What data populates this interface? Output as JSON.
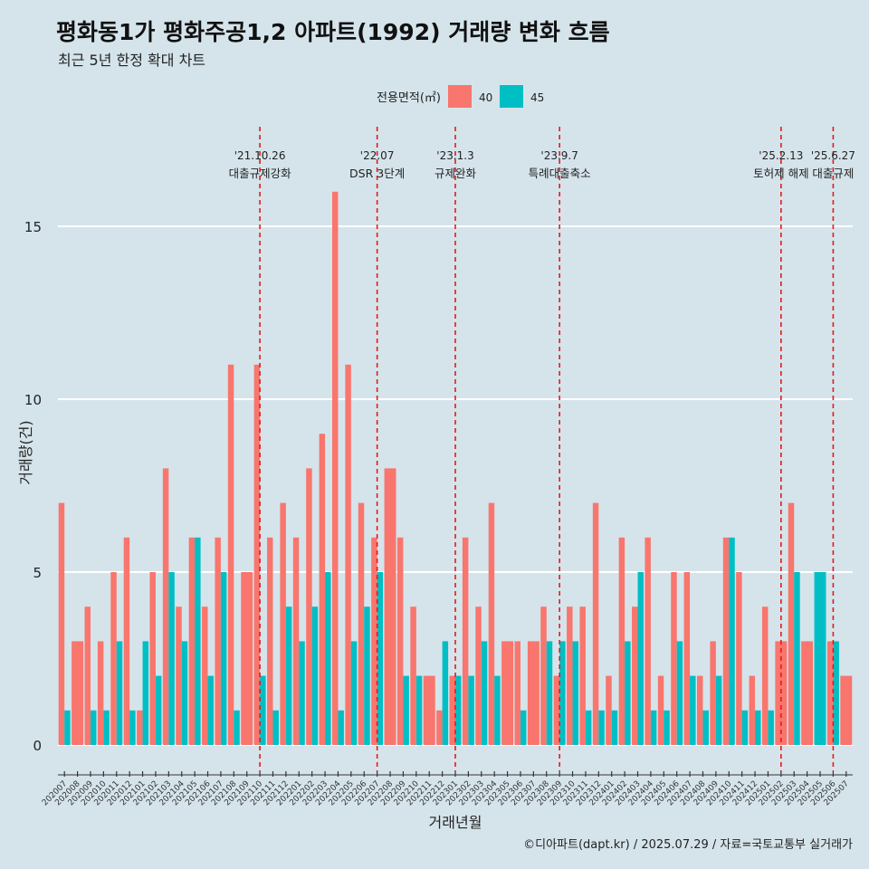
{
  "chart_data": {
    "type": "bar",
    "title": "평화동1가 평화주공1,2 아파트(1992) 거래량 변화 흐름",
    "subtitle": "최근 5년 한정 확대 차트",
    "xlabel": "거래년월",
    "ylabel": "거래량(건)",
    "caption": "©디아파트(dapt.kr) / 2025.07.29 / 자료=국토교통부 실거래가",
    "legend": {
      "title": "전용면적(㎡)",
      "position": "top",
      "entries": [
        {
          "name": "40",
          "color": "#f8766d"
        },
        {
          "name": "45",
          "color": "#00bfc4"
        }
      ]
    },
    "ylim": [
      -0.7,
      17.0
    ],
    "yticks": [
      0,
      5,
      10,
      15
    ],
    "categories": [
      "202007",
      "202008",
      "202009",
      "202010",
      "202011",
      "202012",
      "202101",
      "202102",
      "202103",
      "202104",
      "202105",
      "202106",
      "202107",
      "202108",
      "202109",
      "202110",
      "202111",
      "202112",
      "202201",
      "202202",
      "202203",
      "202204",
      "202205",
      "202206",
      "202207",
      "202208",
      "202209",
      "202210",
      "202211",
      "202212",
      "202301",
      "202302",
      "202303",
      "202304",
      "202305",
      "202306",
      "202307",
      "202308",
      "202309",
      "202310",
      "202311",
      "202312",
      "202401",
      "202402",
      "202403",
      "202404",
      "202405",
      "202406",
      "202407",
      "202408",
      "202409",
      "202410",
      "202411",
      "202412",
      "202501",
      "202502",
      "202503",
      "202504",
      "202505",
      "202506",
      "202507"
    ],
    "series": [
      {
        "name": "40",
        "color": "#f8766d",
        "values": [
          7,
          3,
          4,
          3,
          5,
          6,
          1,
          5,
          8,
          4,
          6,
          4,
          6,
          11,
          5,
          11,
          6,
          7,
          6,
          8,
          9,
          16,
          11,
          7,
          6,
          8,
          6,
          4,
          2,
          1,
          2,
          6,
          4,
          7,
          3,
          3,
          3,
          4,
          2,
          4,
          4,
          7,
          2,
          6,
          4,
          6,
          2,
          5,
          5,
          2,
          3,
          6,
          5,
          2,
          4,
          3,
          7,
          3,
          null,
          3,
          2
        ]
      },
      {
        "name": "45",
        "color": "#00bfc4",
        "values": [
          1,
          null,
          1,
          1,
          3,
          1,
          3,
          2,
          5,
          3,
          6,
          2,
          5,
          1,
          null,
          2,
          1,
          4,
          3,
          4,
          5,
          1,
          3,
          4,
          5,
          null,
          2,
          2,
          null,
          3,
          2,
          2,
          3,
          2,
          null,
          1,
          null,
          3,
          3,
          3,
          1,
          1,
          1,
          3,
          5,
          1,
          1,
          3,
          2,
          1,
          2,
          6,
          1,
          1,
          1,
          null,
          5,
          null,
          5,
          3,
          null
        ]
      }
    ],
    "events": [
      {
        "index": 15.5,
        "date": "'21.10.26",
        "label": "대출규제강화"
      },
      {
        "index": 24.5,
        "date": "'22.07",
        "label": "DSR 3단계"
      },
      {
        "index": 30.5,
        "date": "'23.1.3",
        "label": "규제완화"
      },
      {
        "index": 38.5,
        "date": "'23.9.7",
        "label": "특례대출축소"
      },
      {
        "index": 55.5,
        "date": "'25.2.13",
        "label": "토허제 해제"
      },
      {
        "index": 59.5,
        "date": "'25.6.27",
        "label": "대출규제"
      }
    ]
  }
}
